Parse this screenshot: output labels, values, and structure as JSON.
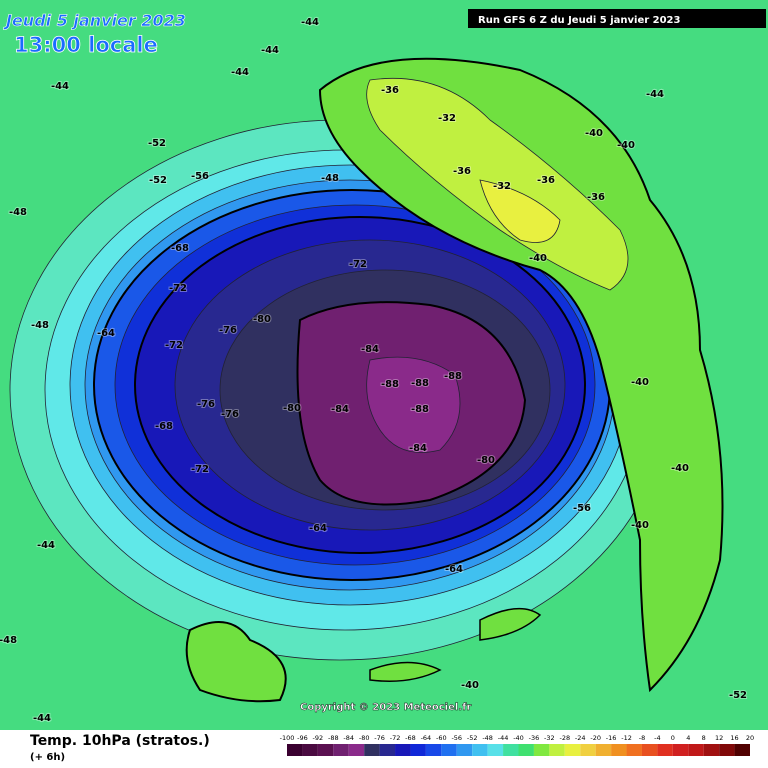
{
  "header": {
    "date_line": "Jeudi 5 janvier 2023",
    "time_line": "13:00 locale",
    "run_info": "Run GFS 6 Z du Jeudi 5 janvier 2023"
  },
  "map": {
    "copyright": "Copyright © 2023 Meteociel.fr",
    "contour_labels": [
      -48,
      -44,
      -44,
      -44,
      -52,
      -52,
      -56,
      -48,
      -48,
      -64,
      -68,
      -72,
      -72,
      -76,
      -80,
      -84,
      -84,
      -88,
      -88,
      -88,
      -88,
      -84,
      -80,
      -80,
      -76,
      -76,
      -72,
      -72,
      -68,
      -64,
      -56,
      -64,
      -36,
      -32,
      -36,
      -36,
      -32,
      -40,
      -36,
      -40,
      -40,
      -44,
      -44,
      -40,
      -40,
      -40,
      -48,
      -44,
      -52,
      -44,
      -40
    ]
  },
  "footer": {
    "title": "Temp. 10hPa (stratos.)",
    "subtitle": "(+ 6h)"
  },
  "scale": {
    "ticks": [
      -100,
      -96,
      -92,
      -88,
      -84,
      -80,
      -76,
      -72,
      -68,
      -64,
      -60,
      -56,
      -52,
      -48,
      -44,
      -40,
      -36,
      -32,
      -28,
      -24,
      -20,
      -16,
      -12,
      -8,
      -4,
      0,
      4,
      8,
      12,
      16,
      20
    ],
    "colors": [
      "#3a0030",
      "#4a0a40",
      "#5a1050",
      "#702070",
      "#8a2a8a",
      "#303060",
      "#282890",
      "#1818b8",
      "#1028d8",
      "#1848e8",
      "#2070f0",
      "#3098f0",
      "#40c0f0",
      "#58e0e8",
      "#40e0a0",
      "#40e070",
      "#80e840",
      "#c0f040",
      "#e8f040",
      "#f0d040",
      "#f0b030",
      "#f09020",
      "#f07020",
      "#e85020",
      "#e03020",
      "#d02020",
      "#c01818",
      "#a01010",
      "#800808",
      "#500000"
    ]
  }
}
